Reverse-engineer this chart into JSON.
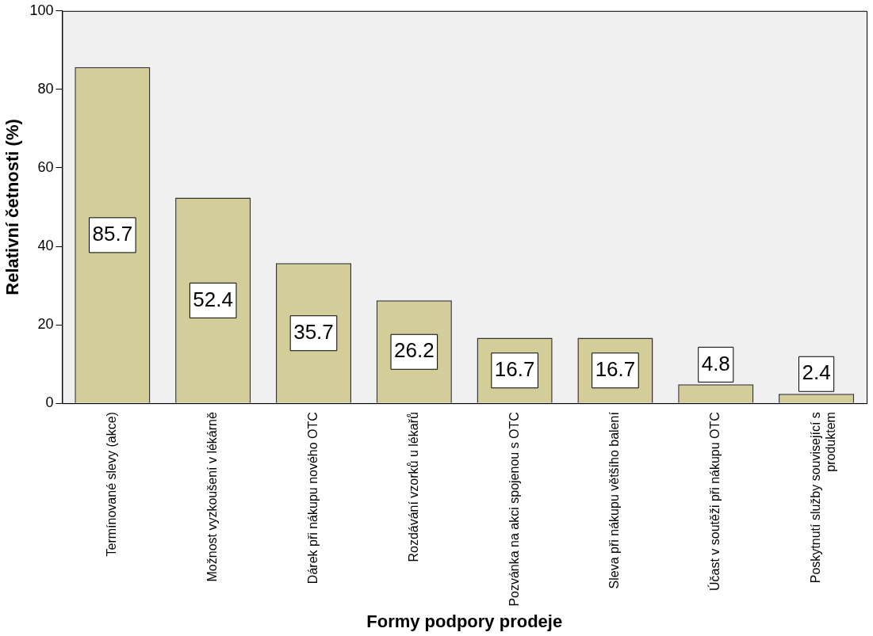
{
  "chart_data": {
    "type": "bar",
    "xlabel": "Formy podpory prodeje",
    "ylabel": "Relativní četnosti (%)",
    "categories": [
      "Termínované slevy (akce)",
      "Možnost vyzkoušení v lékárně",
      "Dárek při nákupu nového OTC",
      "Rozdávání vzorků u lékařů",
      "Pozvánka na akci spojenou s OTC",
      "Sleva při nákupu většího balení",
      "Účast v soutěži při nákupu OTC",
      "Poskytnutí služby související s produktem"
    ],
    "values": [
      85.7,
      52.4,
      35.7,
      26.2,
      16.7,
      16.7,
      4.8,
      2.4
    ],
    "color": "#d3ce99",
    "ylim": [
      0,
      100
    ],
    "yticks": [
      0,
      20,
      40,
      60,
      80,
      100
    ],
    "data_labels": true,
    "grid": false,
    "legend": false
  }
}
